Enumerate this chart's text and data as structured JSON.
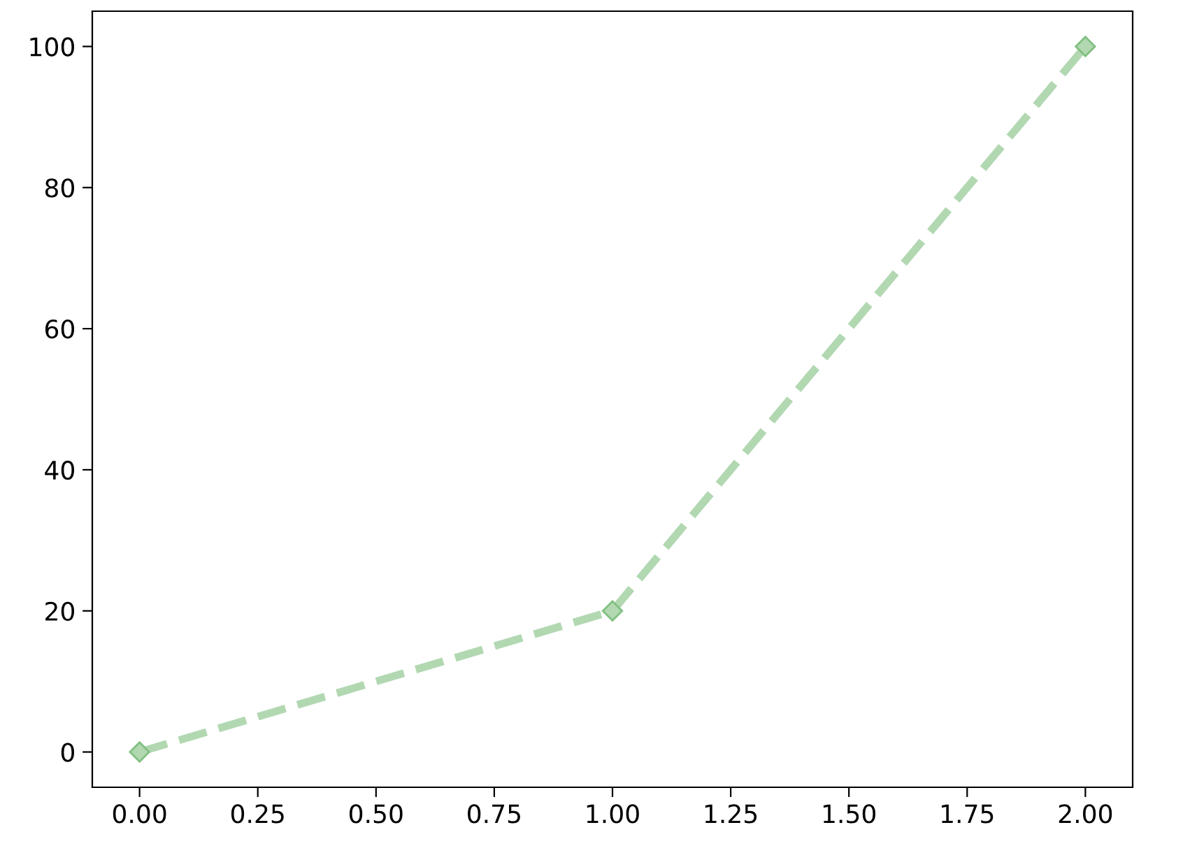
{
  "chart_data": {
    "type": "line",
    "x": [
      0,
      1,
      2
    ],
    "series": [
      {
        "color": "#b2d8b2",
        "values": [
          0,
          20,
          100
        ]
      }
    ],
    "xlim": [
      -0.1,
      2.1
    ],
    "xticks": [
      {
        "value": 0,
        "label": "0.00"
      },
      {
        "value": 0.25,
        "label": "0.25"
      },
      {
        "value": 0.5,
        "label": "0.50"
      },
      {
        "value": 0.75,
        "label": "0.75"
      },
      {
        "value": 1,
        "label": "1.00"
      },
      {
        "value": 1.25,
        "label": "1.25"
      },
      {
        "value": 1.5,
        "label": "1.50"
      },
      {
        "value": 1.75,
        "label": "1.75"
      },
      {
        "value": 2,
        "label": "2.00"
      }
    ],
    "ylim": [
      -5,
      105
    ],
    "yticks": [
      0,
      20,
      40,
      60,
      80,
      100
    ],
    "grid": false,
    "legend": false,
    "marker": "diamond",
    "line_style": "dashed"
  }
}
